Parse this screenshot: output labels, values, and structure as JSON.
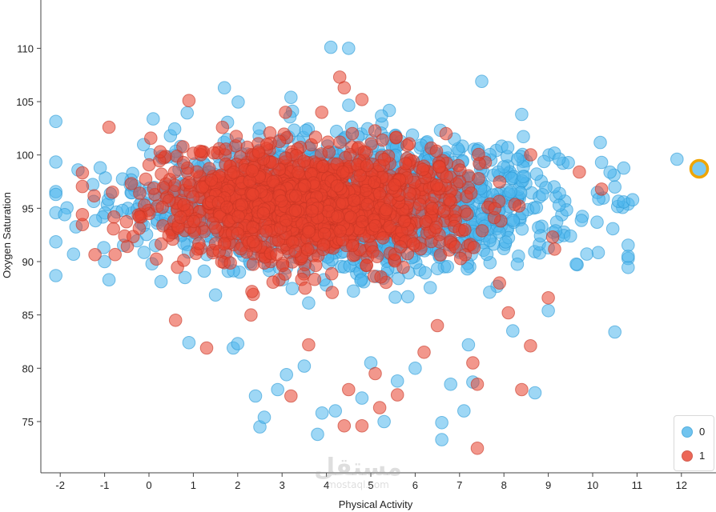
{
  "chart_data": {
    "type": "scatter",
    "xlabel": "Physical Activity",
    "ylabel": "Oxygen Saturation",
    "xlim": [
      -2.4,
      12.8
    ],
    "ylim": [
      71.5,
      114
    ],
    "x_ticks": [
      -2,
      -1,
      0,
      1,
      2,
      3,
      4,
      5,
      6,
      7,
      8,
      9,
      10,
      11,
      12
    ],
    "y_ticks": [
      75,
      80,
      85,
      90,
      95,
      100,
      105,
      110
    ],
    "grid": false,
    "legend_position": "bottom-right",
    "series": [
      {
        "name": "0",
        "color": "#4eb6ec",
        "stroke": "#2a9ad6",
        "cluster": {
          "count": 1800,
          "x_center": 4.5,
          "x_spread": 2.7,
          "y_center": 95.5,
          "y_spread": 3.4,
          "x_range": [
            -2.1,
            10.8
          ],
          "y_range": [
            76,
            105
          ]
        },
        "outliers": [
          [
            4.1,
            110.1
          ],
          [
            7.5,
            106.9
          ],
          [
            1.7,
            106.3
          ],
          [
            -2.1,
            96.3
          ],
          [
            -1.7,
            90.7
          ],
          [
            12.4,
            98.7
          ],
          [
            11.9,
            99.6
          ],
          [
            10.5,
            83.4
          ],
          [
            -1.9,
            94.4
          ],
          [
            -0.9,
            88.3
          ],
          [
            9.0,
            91.3
          ],
          [
            10.7,
            95.6
          ],
          [
            8.7,
            77.7
          ],
          [
            4.5,
            110.0
          ],
          [
            3.2,
            105.4
          ],
          [
            2.5,
            74.5
          ],
          [
            2.6,
            75.4
          ],
          [
            3.9,
            75.8
          ],
          [
            3.8,
            73.8
          ],
          [
            6.6,
            73.3
          ],
          [
            5.3,
            75.0
          ],
          [
            7.1,
            76.0
          ],
          [
            6.6,
            74.9
          ],
          [
            2.4,
            77.4
          ],
          [
            4.8,
            77.2
          ],
          [
            10.2,
            99.3
          ],
          [
            10.9,
            95.8
          ],
          [
            8.4,
            103.8
          ],
          [
            1.9,
            81.9
          ],
          [
            0.9,
            82.4
          ],
          [
            -1.6,
            98.6
          ],
          [
            -1.1,
            98.8
          ],
          [
            -0.6,
            94.8
          ],
          [
            -1.0,
            90.0
          ],
          [
            2.0,
            82.3
          ],
          [
            2.9,
            78.0
          ],
          [
            3.5,
            80.2
          ],
          [
            5.6,
            78.8
          ],
          [
            6.8,
            78.5
          ],
          [
            7.3,
            78.7
          ],
          [
            10.1,
            93.7
          ],
          [
            10.5,
            97.0
          ],
          [
            9.5,
            92.4
          ],
          [
            8.2,
            83.5
          ],
          [
            9.0,
            85.4
          ],
          [
            4.2,
            76.0
          ],
          [
            3.1,
            79.4
          ],
          [
            6.0,
            80.0
          ],
          [
            5.0,
            80.5
          ],
          [
            7.2,
            82.2
          ]
        ]
      },
      {
        "name": "1",
        "color": "#e8422e",
        "stroke": "#c73524",
        "cluster": {
          "count": 1400,
          "x_center": 3.7,
          "x_spread": 2.1,
          "y_center": 95.5,
          "y_spread": 3.0,
          "x_range": [
            -1.5,
            10.0
          ],
          "y_range": [
            78,
            104
          ]
        },
        "outliers": [
          [
            4.3,
            107.3
          ],
          [
            4.4,
            106.3
          ],
          [
            0.9,
            105.1
          ],
          [
            4.8,
            105.2
          ],
          [
            -0.9,
            102.6
          ],
          [
            7.4,
            72.5
          ],
          [
            4.4,
            74.6
          ],
          [
            4.8,
            74.6
          ],
          [
            5.2,
            76.3
          ],
          [
            5.6,
            77.5
          ],
          [
            3.2,
            77.4
          ],
          [
            0.6,
            84.5
          ],
          [
            1.3,
            81.9
          ],
          [
            7.4,
            78.5
          ],
          [
            8.4,
            78.0
          ],
          [
            8.6,
            82.1
          ],
          [
            9.0,
            86.6
          ],
          [
            8.1,
            85.2
          ],
          [
            -1.5,
            94.4
          ],
          [
            9.7,
            98.4
          ],
          [
            10.2,
            96.8
          ],
          [
            9.1,
            92.3
          ],
          [
            7.9,
            88.0
          ],
          [
            5.1,
            79.5
          ],
          [
            4.5,
            78.0
          ],
          [
            6.5,
            84.0
          ],
          [
            2.3,
            85.0
          ],
          [
            6.2,
            81.5
          ],
          [
            3.6,
            82.2
          ],
          [
            7.3,
            80.5
          ]
        ]
      }
    ]
  },
  "legend": {
    "items": [
      {
        "label": "0",
        "color": "#4eb6ec"
      },
      {
        "label": "1",
        "color": "#e8422e"
      }
    ]
  },
  "highlight": {
    "series": "0",
    "point": [
      12.4,
      98.7
    ],
    "ring_color": "#f0a500"
  },
  "watermark": {
    "big": "مستقل",
    "small": "mostaql.com"
  }
}
